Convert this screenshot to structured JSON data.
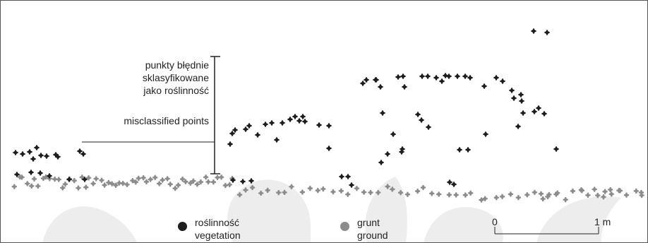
{
  "annotation": {
    "polish_line1": "punkty błędnie",
    "polish_line2": "sklasyfikowane",
    "polish_line3": "jako roślinność",
    "english": "misclassified points"
  },
  "legend": {
    "vegetation_pl": "roślinność",
    "vegetation_en": "vegetation",
    "ground_pl": "grunt",
    "ground_en": "ground"
  },
  "scale_bar": {
    "start_label": "0",
    "end_label": "1 m"
  },
  "colors": {
    "vegetation": "#1e1e1e",
    "ground": "#8c8c8c",
    "watermark": "#ededed",
    "border": "#555555"
  }
}
